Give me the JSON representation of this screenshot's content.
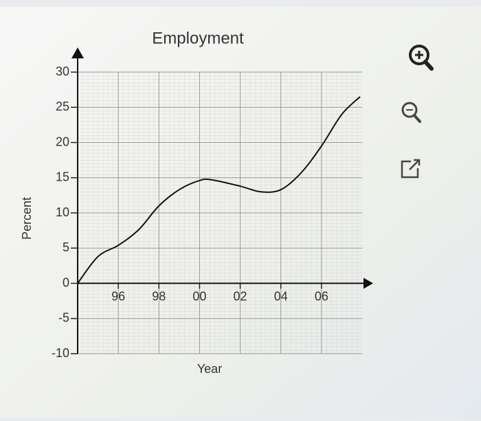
{
  "chart_data": {
    "type": "line",
    "title": "Employment",
    "x_label": "Year",
    "y_label": "Percent",
    "x": [
      1994,
      1995,
      1996,
      1997,
      1998,
      1999,
      2000,
      2000.6,
      2002,
      2003,
      2004,
      2005,
      2006,
      2007,
      2007.9
    ],
    "series": [
      {
        "name": "Employment",
        "color": "#111111",
        "values": [
          0,
          3.8,
          5.4,
          7.6,
          11,
          13.3,
          14.6,
          14.7,
          13.8,
          13,
          13.3,
          15.7,
          19.5,
          24,
          26.5
        ]
      }
    ],
    "xlim": [
      1994,
      2008
    ],
    "ylim": [
      -10,
      30
    ],
    "xticks": [
      {
        "value": 1996,
        "label": "96"
      },
      {
        "value": 1998,
        "label": "98"
      },
      {
        "value": 2000,
        "label": "00"
      },
      {
        "value": 2002,
        "label": "02"
      },
      {
        "value": 2004,
        "label": "04"
      },
      {
        "value": 2006,
        "label": "06"
      }
    ],
    "yticks": [
      -10,
      -5,
      0,
      5,
      10,
      15,
      20,
      25,
      30
    ],
    "grid": true
  }
}
